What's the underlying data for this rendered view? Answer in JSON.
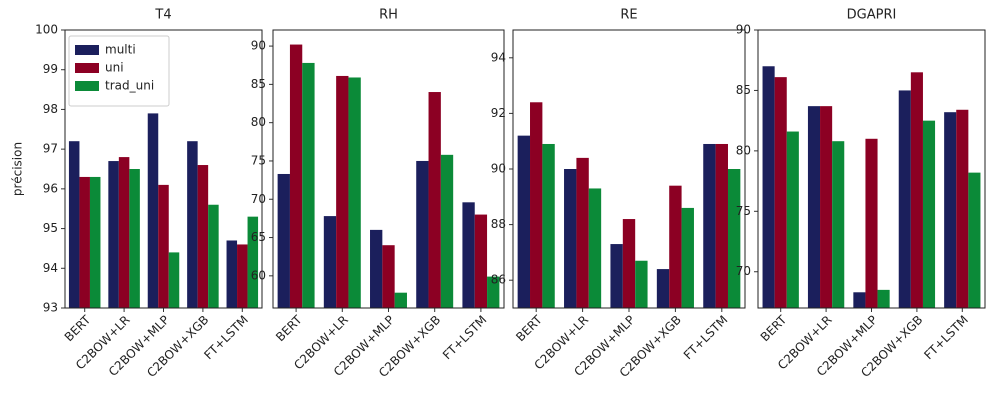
{
  "chart_data": [
    {
      "type": "bar",
      "title": "T4",
      "ylabel": "précision",
      "legend": "upper left",
      "categories": [
        "BERT",
        "C2BOW+LR",
        "C2BOW+MLP",
        "C2BOW+XGB",
        "FT+LSTM"
      ],
      "series": [
        {
          "name": "multi",
          "color": "#1b1f5c",
          "values": [
            97.2,
            96.7,
            97.9,
            97.2,
            94.7
          ]
        },
        {
          "name": "uni",
          "color": "#8c0023",
          "values": [
            96.3,
            96.8,
            96.1,
            96.6,
            94.6
          ]
        },
        {
          "name": "trad_uni",
          "color": "#0b8a38",
          "values": [
            96.3,
            96.5,
            94.4,
            95.6,
            95.3
          ]
        }
      ],
      "ylim": [
        93,
        100
      ],
      "yticks": [
        93,
        94,
        95,
        96,
        97,
        98,
        99,
        100
      ]
    },
    {
      "type": "bar",
      "title": "RH",
      "categories": [
        "BERT",
        "C2BOW+LR",
        "C2BOW+MLP",
        "C2BOW+XGB",
        "FT+LSTM"
      ],
      "series": [
        {
          "name": "multi",
          "color": "#1b1f5c",
          "values": [
            73.3,
            67.8,
            66.0,
            75.0,
            69.6
          ]
        },
        {
          "name": "uni",
          "color": "#8c0023",
          "values": [
            90.2,
            86.1,
            64.0,
            84.0,
            68.0
          ]
        },
        {
          "name": "trad_uni",
          "color": "#0b8a38",
          "values": [
            87.8,
            85.9,
            57.8,
            75.8,
            59.9
          ]
        }
      ],
      "ylim": [
        55.8,
        92.1
      ],
      "yticks": [
        60,
        65,
        70,
        75,
        80,
        85,
        90
      ]
    },
    {
      "type": "bar",
      "title": "RE",
      "categories": [
        "BERT",
        "C2BOW+LR",
        "C2BOW+MLP",
        "C2BOW+XGB",
        "FT+LSTM"
      ],
      "series": [
        {
          "name": "multi",
          "color": "#1b1f5c",
          "values": [
            91.2,
            90.0,
            87.3,
            86.4,
            90.9
          ]
        },
        {
          "name": "uni",
          "color": "#8c0023",
          "values": [
            92.4,
            90.4,
            88.2,
            89.4,
            90.9
          ]
        },
        {
          "name": "trad_uni",
          "color": "#0b8a38",
          "values": [
            90.9,
            89.3,
            86.7,
            88.6,
            90.0
          ]
        }
      ],
      "ylim": [
        85,
        95
      ],
      "yticks": [
        86,
        88,
        90,
        92,
        94
      ]
    },
    {
      "type": "bar",
      "title": "DGAPRI",
      "categories": [
        "BERT",
        "C2BOW+LR",
        "C2BOW+MLP",
        "C2BOW+XGB",
        "FT+LSTM"
      ],
      "series": [
        {
          "name": "multi",
          "color": "#1b1f5c",
          "values": [
            87.0,
            83.7,
            68.3,
            85.0,
            83.2
          ]
        },
        {
          "name": "uni",
          "color": "#8c0023",
          "values": [
            86.1,
            83.7,
            81.0,
            86.5,
            83.4
          ]
        },
        {
          "name": "trad_uni",
          "color": "#0b8a38",
          "values": [
            81.6,
            80.8,
            68.5,
            82.5,
            78.2
          ]
        }
      ],
      "ylim": [
        67,
        90
      ],
      "yticks": [
        70,
        75,
        80,
        85,
        90
      ]
    }
  ]
}
